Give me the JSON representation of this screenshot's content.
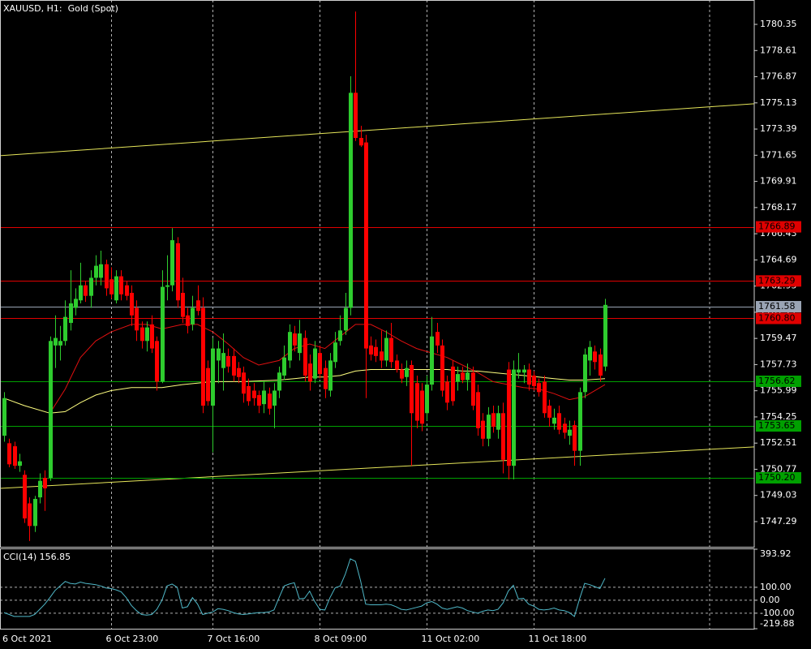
{
  "chart_data": {
    "type": "candlestick",
    "title": "XAUUSD, H1:  Gold (Spot)",
    "categories": [
      "6 Oct 2021",
      null,
      null,
      null,
      null,
      null,
      null,
      null,
      null,
      null,
      null,
      null,
      null,
      null,
      null,
      null,
      null,
      null,
      null,
      null,
      null,
      "6 Oct 23:00",
      null,
      null,
      null,
      null,
      null,
      null,
      null,
      null,
      null,
      null,
      null,
      null,
      null,
      null,
      null,
      null,
      null,
      null,
      null,
      "7 Oct 16:00",
      null,
      null,
      null,
      null,
      null,
      null,
      null,
      null,
      null,
      null,
      null,
      null,
      null,
      null,
      null,
      null,
      null,
      null,
      null,
      null,
      "8 Oct 09:00",
      null,
      null,
      null,
      null,
      null,
      null,
      null,
      null,
      null,
      null,
      null,
      null,
      null,
      null,
      null,
      null,
      null,
      null,
      null,
      null,
      "11 Oct 02:00",
      null,
      null,
      null,
      null,
      null,
      null,
      null,
      null,
      null,
      null,
      null,
      null,
      null,
      null,
      null,
      null,
      null,
      null,
      null,
      null,
      "11 Oct 18:00",
      null,
      null,
      null,
      null,
      null,
      null,
      null,
      null,
      null,
      null,
      null,
      null,
      null,
      null
    ],
    "open": [
      1753.0,
      1752.5,
      1752.3,
      1751.0,
      1750.4,
      1748.5,
      1747.0,
      1748.9,
      1750.2,
      1750.2,
      1759.0,
      1759.0,
      1759.3,
      1760.5,
      1761.5,
      1762.0,
      1763.0,
      1762.3,
      1763.5,
      1763.5,
      1764.4,
      1763.4,
      1762.0,
      1763.6,
      1763.0,
      1762.5,
      1761.5,
      1760.2,
      1759.3,
      1760.4,
      1759.3,
      1756.6,
      1762.9,
      1763.0,
      1765.8,
      1762.5,
      1761.0,
      1760.4,
      1762.0,
      1761.5,
      1757.5,
      1755.0,
      1758.0,
      1757.5,
      1758.3,
      1758.3,
      1757.5,
      1757.2,
      1756.3,
      1756.0,
      1755.7,
      1755.1,
      1755.8,
      1755.0,
      1756.0,
      1757.0,
      1758.0,
      1759.8,
      1758.5,
      1759.5,
      1757.8,
      1756.8,
      1758.5,
      1757.5,
      1756.0,
      1757.9,
      1759.3,
      1760.0,
      1761.5,
      1775.8,
      1772.8,
      1772.5,
      1759.0,
      1758.9,
      1758.6,
      1758.0,
      1759.5,
      1758.0,
      1757.4,
      1756.9,
      1757.7,
      1756.5,
      1756.0,
      1754.5,
      1756.4,
      1759.9,
      1759.0,
      1756.6,
      1757.6,
      1756.6,
      1757.2,
      1756.7,
      1757.2,
      1755.9,
      1754.0,
      1752.8,
      1754.5,
      1753.4,
      1754.5,
      1757.4,
      1751.0,
      1757.2,
      1757.2,
      1757.4,
      1757.0,
      1756.5,
      1756.6,
      1755.0,
      1753.8,
      1754.5,
      1753.8,
      1753.0,
      1753.7,
      1752.0,
      1755.9,
      1758.0,
      1758.6,
      1758.4,
      1757.6
    ],
    "high": [
      1755.9,
      1752.8,
      1752.6,
      1751.8,
      1750.7,
      1748.9,
      1749.0,
      1750.5,
      1750.7,
      1759.6,
      1761.0,
      1760.3,
      1762.0,
      1764.0,
      1762.8,
      1764.5,
      1763.3,
      1764.0,
      1765.0,
      1765.3,
      1764.7,
      1764.2,
      1764.0,
      1764.0,
      1763.3,
      1763.0,
      1762.0,
      1760.6,
      1760.6,
      1761.0,
      1759.6,
      1764.0,
      1765.0,
      1766.8,
      1766.2,
      1763.5,
      1761.5,
      1762.3,
      1763.0,
      1762.2,
      1758.0,
      1759.5,
      1759.3,
      1759.8,
      1758.8,
      1758.8,
      1757.9,
      1757.6,
      1756.8,
      1756.5,
      1756.0,
      1756.6,
      1756.2,
      1756.5,
      1757.6,
      1759.0,
      1760.4,
      1760.3,
      1760.7,
      1760.0,
      1758.4,
      1759.3,
      1759.0,
      1758.0,
      1758.5,
      1759.9,
      1761.0,
      1762.5,
      1776.9,
      1781.2,
      1773.6,
      1773.0,
      1759.6,
      1759.4,
      1760.0,
      1760.0,
      1760.5,
      1758.4,
      1757.8,
      1758.0,
      1758.0,
      1757.0,
      1756.5,
      1757.0,
      1760.9,
      1760.5,
      1759.4,
      1757.0,
      1758.0,
      1757.6,
      1757.6,
      1757.8,
      1757.6,
      1756.4,
      1754.5,
      1754.9,
      1755.0,
      1755.0,
      1755.2,
      1757.9,
      1758.0,
      1758.5,
      1757.7,
      1757.8,
      1757.3,
      1756.8,
      1757.0,
      1755.4,
      1754.8,
      1755.0,
      1754.2,
      1754.0,
      1754.0,
      1756.2,
      1758.8,
      1759.3,
      1759.0,
      1758.8,
      1762.1
    ],
    "low": [
      1752.6,
      1750.9,
      1750.8,
      1750.6,
      1747.2,
      1746.0,
      1746.6,
      1748.5,
      1748.0,
      1750.0,
      1757.5,
      1758.0,
      1759.0,
      1760.0,
      1761.0,
      1761.8,
      1761.9,
      1761.5,
      1763.0,
      1763.0,
      1762.3,
      1762.1,
      1761.8,
      1762.0,
      1762.0,
      1760.3,
      1759.3,
      1758.8,
      1758.6,
      1758.5,
      1756.0,
      1756.5,
      1762.0,
      1762.6,
      1761.5,
      1760.5,
      1759.8,
      1760.0,
      1761.0,
      1754.5,
      1755.0,
      1751.9,
      1756.5,
      1756.0,
      1757.2,
      1756.6,
      1756.5,
      1755.2,
      1755.0,
      1755.0,
      1754.5,
      1754.5,
      1754.4,
      1753.5,
      1755.5,
      1756.7,
      1757.5,
      1758.6,
      1758.0,
      1756.6,
      1756.0,
      1756.5,
      1756.8,
      1755.5,
      1755.6,
      1757.5,
      1759.0,
      1759.7,
      1761.0,
      1772.6,
      1772.2,
      1755.5,
      1758.0,
      1757.9,
      1757.5,
      1757.6,
      1757.5,
      1757.2,
      1756.5,
      1756.3,
      1751.0,
      1753.5,
      1753.3,
      1754.0,
      1756.0,
      1758.5,
      1755.6,
      1754.7,
      1755.0,
      1756.0,
      1756.5,
      1756.0,
      1754.7,
      1753.0,
      1752.3,
      1752.3,
      1753.2,
      1752.8,
      1750.5,
      1750.1,
      1750.1,
      1756.8,
      1756.5,
      1756.0,
      1756.0,
      1755.6,
      1754.2,
      1753.6,
      1753.4,
      1753.1,
      1752.8,
      1752.4,
      1751.0,
      1751.0,
      1755.5,
      1757.0,
      1757.4,
      1756.6,
      1757.3
    ],
    "close": [
      1755.5,
      1751.1,
      1751.0,
      1751.3,
      1747.5,
      1747.0,
      1748.8,
      1750.0,
      1749.5,
      1759.3,
      1759.5,
      1759.3,
      1760.9,
      1761.8,
      1762.1,
      1763.0,
      1762.3,
      1763.5,
      1764.3,
      1764.4,
      1762.8,
      1762.4,
      1763.6,
      1762.4,
      1762.3,
      1761.0,
      1760.0,
      1759.3,
      1760.2,
      1758.8,
      1756.6,
      1762.9,
      1763.0,
      1766.0,
      1762.0,
      1760.9,
      1760.3,
      1761.5,
      1761.3,
      1755.0,
      1755.3,
      1758.8,
      1758.8,
      1758.5,
      1757.6,
      1757.0,
      1756.9,
      1755.8,
      1755.3,
      1755.5,
      1755.0,
      1756.0,
      1754.8,
      1756.0,
      1757.2,
      1758.2,
      1759.9,
      1759.0,
      1759.8,
      1757.0,
      1756.6,
      1758.8,
      1757.1,
      1756.1,
      1758.0,
      1759.2,
      1760.0,
      1761.5,
      1775.8,
      1772.8,
      1772.3,
      1758.8,
      1758.4,
      1758.3,
      1758.0,
      1759.5,
      1757.9,
      1757.4,
      1756.8,
      1757.5,
      1754.5,
      1754.0,
      1753.8,
      1756.4,
      1759.6,
      1759.0,
      1756.0,
      1755.2,
      1755.3,
      1757.1,
      1756.7,
      1757.2,
      1755.0,
      1753.5,
      1752.8,
      1754.4,
      1753.6,
      1754.5,
      1751.4,
      1751.0,
      1757.4,
      1757.4,
      1757.4,
      1756.4,
      1756.3,
      1755.9,
      1754.5,
      1754.2,
      1754.2,
      1753.4,
      1753.2,
      1753.4,
      1752.0,
      1755.9,
      1758.4,
      1758.9,
      1757.9,
      1757.0,
      1761.7
    ],
    "up_color": "#2ecc2e",
    "down_color": "#ff0000",
    "ylim": [
      1745.67,
      1781.97
    ],
    "yticks": [
      1780.35,
      1778.61,
      1776.87,
      1775.13,
      1773.39,
      1771.65,
      1769.91,
      1768.17,
      1766.43,
      1764.69,
      1762.95,
      1761.21,
      1759.47,
      1757.73,
      1755.99,
      1754.25,
      1752.51,
      1750.77,
      1749.03,
      1747.29
    ],
    "grid": true,
    "moving_averages": [
      {
        "color": "#e01010",
        "x": [
          9,
          12,
          15,
          18,
          21,
          25,
          28,
          31,
          35,
          38,
          41,
          44,
          47,
          50,
          54,
          57,
          60,
          63,
          66,
          69,
          72,
          75,
          78,
          81,
          84,
          87,
          90,
          93,
          96,
          99,
          102,
          105,
          108,
          111,
          114,
          117,
          118
        ],
        "values": [
          1754.5,
          1756.1,
          1758.2,
          1759.3,
          1759.9,
          1760.4,
          1760.4,
          1760.1,
          1760.4,
          1760.4,
          1759.9,
          1759.1,
          1758.2,
          1757.7,
          1758.0,
          1758.8,
          1759.1,
          1758.8,
          1759.6,
          1760.4,
          1760.4,
          1759.9,
          1759.3,
          1758.8,
          1758.5,
          1758.2,
          1757.7,
          1757.2,
          1756.6,
          1756.4,
          1756.2,
          1756.1,
          1755.8,
          1755.4,
          1755.6,
          1756.2,
          1756.4
        ]
      },
      {
        "color": "#ffff80",
        "x": [
          0,
          4,
          9,
          12,
          15,
          18,
          21,
          25,
          28,
          31,
          35,
          38,
          41,
          47,
          54,
          57,
          60,
          63,
          66,
          69,
          72,
          81,
          87,
          90,
          93,
          96,
          99,
          102,
          105,
          108,
          111,
          114,
          118
        ],
        "values": [
          1755.5,
          1755.0,
          1754.5,
          1754.6,
          1755.2,
          1755.7,
          1756.0,
          1756.2,
          1756.2,
          1756.2,
          1756.4,
          1756.5,
          1756.6,
          1756.6,
          1756.7,
          1756.8,
          1756.9,
          1756.9,
          1757.0,
          1757.3,
          1757.4,
          1757.4,
          1757.4,
          1757.3,
          1757.3,
          1757.2,
          1757.1,
          1757.0,
          1756.9,
          1756.8,
          1756.7,
          1756.7,
          1756.8
        ]
      }
    ],
    "levels": [
      {
        "value": 1766.89,
        "color": "#e00000"
      },
      {
        "value": 1763.29,
        "color": "#e00000"
      },
      {
        "value": 1761.58,
        "color": "#9aa4b4"
      },
      {
        "value": 1760.8,
        "label": "1760.80",
        "color": "#e00000"
      },
      {
        "value": 1756.62,
        "color": "#00a000"
      },
      {
        "value": 1753.65,
        "color": "#00a000"
      },
      {
        "value": 1750.2,
        "label": "1750.20",
        "color": "#00a000"
      }
    ],
    "trendlines": [
      {
        "color": "#e6e65a",
        "start": 1771.62,
        "end": 1775.07
      },
      {
        "color": "#e6e65a",
        "start": 1749.5,
        "end": 1752.26
      }
    ],
    "cci": {
      "title": "CCI(14) 156.85",
      "color": "#4fb8c8",
      "values": [
        -95,
        -110,
        -125,
        -125,
        -125,
        -125,
        -110,
        -70,
        -30,
        20,
        75,
        110,
        145,
        130,
        125,
        140,
        130,
        125,
        120,
        110,
        95,
        90,
        80,
        65,
        20,
        -40,
        -80,
        -110,
        -115,
        -110,
        -70,
        0,
        110,
        125,
        100,
        -60,
        -50,
        20,
        -30,
        -110,
        -100,
        -90,
        -65,
        -70,
        -80,
        -95,
        -105,
        -110,
        -105,
        -100,
        -95,
        -95,
        -90,
        -75,
        20,
        110,
        125,
        135,
        10,
        15,
        70,
        -10,
        -70,
        -75,
        20,
        95,
        110,
        200,
        320,
        300,
        150,
        -30,
        -35,
        -35,
        -35,
        -30,
        -35,
        -50,
        -70,
        -75,
        -65,
        -55,
        -45,
        -20,
        -10,
        -30,
        -60,
        -70,
        -60,
        -50,
        -60,
        -80,
        -90,
        -100,
        -85,
        -75,
        -80,
        -70,
        -20,
        70,
        115,
        10,
        15,
        -30,
        -45,
        -70,
        -75,
        -70,
        -60,
        -75,
        -80,
        -95,
        -125,
        10,
        130,
        120,
        105,
        90,
        170
      ],
      "ylim": [
        -219.88,
        393.92
      ],
      "yticks": [
        393.92,
        {
          "value": 100,
          "label": "100.00"
        },
        {
          "value": 0,
          "label": "0.00"
        },
        {
          "value": -100,
          "label": "-100.00"
        },
        -219.88
      ]
    }
  }
}
